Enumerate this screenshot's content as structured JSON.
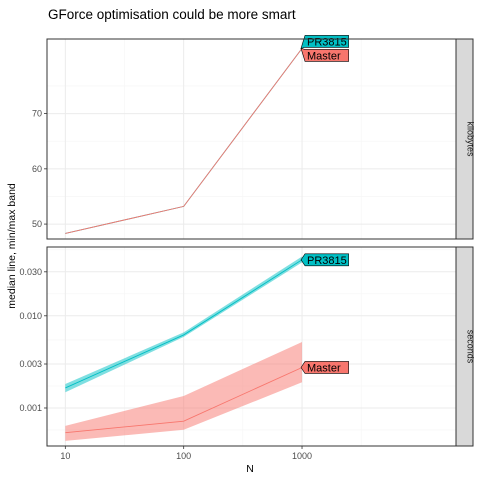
{
  "chart_data": {
    "type": "line",
    "title": "GForce optimisation could be more smart",
    "xlabel": "N",
    "ylabel": "median line, min/max band",
    "x_scale": "log",
    "x_ticks": [
      10,
      100,
      1000
    ],
    "x_tick_labels": [
      "10",
      "100",
      "1000"
    ],
    "xlim": [
      7,
      20000
    ],
    "grid": true,
    "legend": "none",
    "panels": [
      {
        "strip": "kilobytes",
        "y_scale": "linear",
        "ylim": [
          47.3,
          83.5
        ],
        "y_ticks": [
          50,
          60,
          70
        ],
        "y_tick_labels": [
          "50",
          "60",
          "70"
        ],
        "series": [
          {
            "name": "PR3815",
            "color": "#00BFC4",
            "x": [
              10,
              100,
              1000
            ],
            "median": [
              48.3,
              53.2,
              81.8
            ],
            "min": [
              48.3,
              53.2,
              81.8
            ],
            "max": [
              48.3,
              53.2,
              81.8
            ]
          },
          {
            "name": "Master",
            "color": "#F8766D",
            "x": [
              10,
              100,
              1000
            ],
            "median": [
              48.3,
              53.2,
              81.8
            ],
            "min": [
              48.3,
              53.2,
              81.8
            ],
            "max": [
              48.3,
              53.2,
              81.8
            ]
          }
        ]
      },
      {
        "strip": "seconds",
        "y_scale": "log",
        "ylim": [
          0.000387,
          0.05575
        ],
        "y_ticks": [
          0.001,
          0.003,
          0.01,
          0.03
        ],
        "y_tick_labels": [
          "0.001",
          "0.003",
          "0.010",
          "0.030"
        ],
        "series": [
          {
            "name": "PR3815",
            "color": "#00BFC4",
            "x": [
              10,
              100,
              1000
            ],
            "median": [
              0.00165,
              0.0062,
              0.0405
            ],
            "min": [
              0.00148,
              0.0059,
              0.038
            ],
            "max": [
              0.00182,
              0.0066,
              0.044
            ]
          },
          {
            "name": "Master",
            "color": "#F8766D",
            "x": [
              10,
              100,
              1000
            ],
            "median": [
              0.00054,
              0.00072,
              0.00275
            ],
            "min": [
              0.00044,
              0.00058,
              0.0019
            ],
            "max": [
              0.00064,
              0.00135,
              0.0052
            ]
          }
        ]
      }
    ]
  },
  "colors": {
    "panel_border": "#333333",
    "grid_major": "#ebebeb",
    "grid_minor": "#f5f5f5",
    "strip_fill": "#d9d9d9",
    "pr3815": "#00BFC4",
    "master": "#F8766D"
  }
}
